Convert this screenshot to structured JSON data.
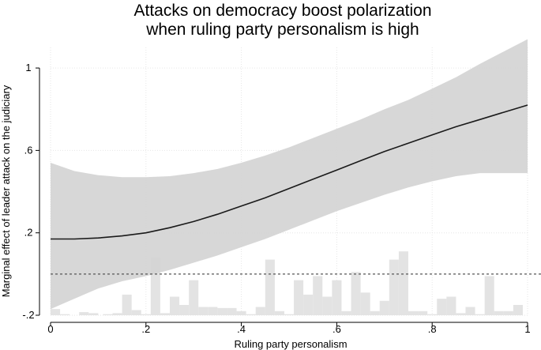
{
  "chart_data": {
    "type": "line",
    "title_lines": [
      "Attacks on democracy boost polarization",
      "when ruling party personalism is high"
    ],
    "xlabel": "Ruling party personalism",
    "ylabel": "Marginal effect of leader attack on the judiciary",
    "xlim": [
      0,
      1
    ],
    "ylim": [
      -0.2,
      1.1
    ],
    "x_ticks": [
      0,
      0.2,
      0.4,
      0.6,
      0.8,
      1
    ],
    "x_tick_labels": [
      "0",
      ".2",
      ".4",
      ".6",
      ".8",
      "1"
    ],
    "y_ticks": [
      -0.2,
      0.2,
      0.6,
      1
    ],
    "y_tick_labels": [
      "-.2",
      ".2",
      ".6",
      "1"
    ],
    "grid": true,
    "reference_line": {
      "y": 0,
      "style": "dashed"
    },
    "series": [
      {
        "kind": "estimate_with_ci",
        "x": [
          0,
          0.05,
          0.1,
          0.15,
          0.2,
          0.25,
          0.3,
          0.35,
          0.4,
          0.45,
          0.5,
          0.55,
          0.6,
          0.65,
          0.7,
          0.75,
          0.8,
          0.85,
          0.9,
          0.95,
          1
        ],
        "y": [
          0.17,
          0.17,
          0.175,
          0.185,
          0.2,
          0.225,
          0.255,
          0.29,
          0.33,
          0.37,
          0.415,
          0.46,
          0.505,
          0.55,
          0.595,
          0.635,
          0.675,
          0.715,
          0.75,
          0.785,
          0.82
        ],
        "lower": [
          -0.17,
          -0.12,
          -0.07,
          -0.035,
          -0.01,
          0.02,
          0.055,
          0.09,
          0.13,
          0.17,
          0.215,
          0.26,
          0.305,
          0.345,
          0.385,
          0.42,
          0.45,
          0.475,
          0.49,
          0.49,
          0.49
        ],
        "upper": [
          0.54,
          0.5,
          0.48,
          0.47,
          0.47,
          0.475,
          0.49,
          0.51,
          0.54,
          0.575,
          0.615,
          0.66,
          0.705,
          0.75,
          0.8,
          0.845,
          0.9,
          0.955,
          1.02,
          1.08,
          1.14
        ]
      }
    ],
    "histogram": {
      "bins": [
        0.01,
        0.03,
        0.07,
        0.09,
        0.12,
        0.14,
        0.16,
        0.18,
        0.2,
        0.22,
        0.24,
        0.26,
        0.28,
        0.3,
        0.32,
        0.34,
        0.36,
        0.38,
        0.4,
        0.42,
        0.44,
        0.46,
        0.48,
        0.5,
        0.52,
        0.54,
        0.56,
        0.58,
        0.6,
        0.62,
        0.64,
        0.66,
        0.68,
        0.7,
        0.72,
        0.74,
        0.76,
        0.78,
        0.8,
        0.82,
        0.84,
        0.86,
        0.88,
        0.9,
        0.92,
        0.94,
        0.96,
        0.98
      ],
      "heights": [
        0.03,
        0.005,
        0.015,
        0.01,
        0.005,
        0.01,
        0.1,
        0.025,
        0.005,
        0.28,
        0.01,
        0.09,
        0.05,
        0.17,
        0.04,
        0.04,
        0.035,
        0.035,
        0.02,
        0.005,
        0.04,
        0.27,
        0.02,
        0.005,
        0.17,
        0.1,
        0.19,
        0.09,
        0.17,
        0.02,
        0.21,
        0.11,
        0.02,
        0.07,
        0.27,
        0.31,
        0.02,
        0.02,
        0.005,
        0.08,
        0.09,
        0.01,
        0.04,
        0.005,
        0.19,
        0.02,
        0.02,
        0.05
      ],
      "bin_width": 0.02
    }
  }
}
